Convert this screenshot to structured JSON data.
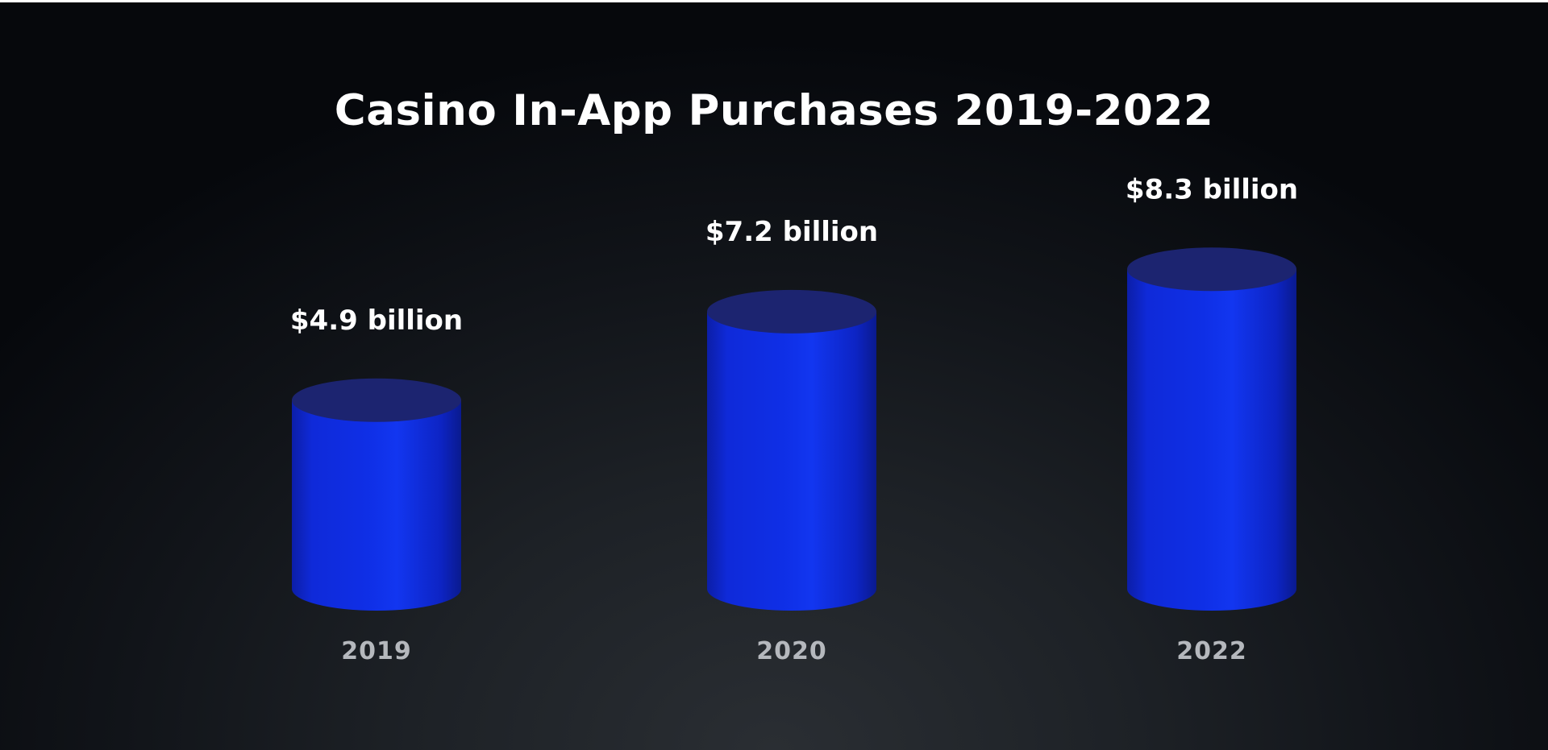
{
  "chart_data": {
    "type": "bar",
    "title": "Casino In-App Purchases 2019-2022",
    "categories": [
      "2019",
      "2020",
      "2022"
    ],
    "values": [
      4.9,
      7.2,
      8.3
    ],
    "value_labels": [
      "$4.9 billion",
      "$7.2 billion",
      "$8.3 billion"
    ],
    "unit": "billion USD",
    "grid": false,
    "bar_style": "3d-cylinder",
    "colors": {
      "bar": "#0a24e0",
      "bar_top": "#1c2470",
      "background": "#16191d"
    }
  }
}
